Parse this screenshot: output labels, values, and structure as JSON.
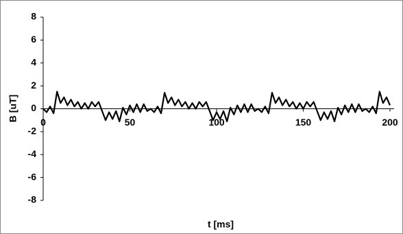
{
  "chart_data": {
    "type": "line",
    "x_label": "t [ms]",
    "y_label": "B [uT]",
    "x": [
      0,
      2,
      4,
      6,
      8,
      10,
      12,
      14,
      16,
      18,
      20,
      22,
      24,
      26,
      28,
      30,
      32,
      34,
      36,
      38,
      40,
      42,
      44,
      46,
      48,
      50,
      52,
      54,
      56,
      58,
      60,
      62,
      64,
      66,
      68,
      70,
      72,
      74,
      76,
      78,
      80,
      82,
      84,
      86,
      88,
      90,
      92,
      94,
      96,
      98,
      100,
      102,
      104,
      106,
      108,
      110,
      112,
      114,
      116,
      118,
      120,
      122,
      124,
      126,
      128,
      130,
      132,
      134,
      136,
      138,
      140,
      142,
      144,
      146,
      148,
      150,
      152,
      154,
      156,
      158,
      160,
      162,
      164,
      166,
      168,
      170,
      172,
      174,
      176,
      178,
      180,
      182,
      184,
      186,
      188,
      190,
      192,
      194,
      196,
      198,
      200
    ],
    "values": [
      0.0,
      -0.3,
      0.2,
      -0.4,
      1.5,
      0.5,
      1.0,
      0.3,
      0.8,
      0.2,
      0.6,
      0.0,
      0.5,
      0.0,
      0.6,
      0.2,
      0.6,
      -0.2,
      -1.0,
      -0.3,
      -0.9,
      -0.2,
      -1.1,
      0.1,
      -0.5,
      0.3,
      -0.3,
      0.4,
      -0.3,
      0.4,
      -0.2,
      0.0,
      -0.3,
      0.2,
      -0.4,
      1.4,
      0.5,
      1.0,
      0.3,
      0.8,
      0.2,
      0.6,
      0.0,
      0.5,
      0.0,
      0.6,
      0.2,
      0.6,
      -0.2,
      -1.0,
      -0.3,
      -0.9,
      -0.2,
      -1.1,
      0.1,
      -0.5,
      0.3,
      -0.3,
      0.4,
      -0.3,
      0.4,
      -0.2,
      0.0,
      -0.3,
      0.2,
      -0.4,
      1.4,
      0.5,
      1.0,
      0.3,
      0.8,
      0.2,
      0.6,
      0.0,
      0.5,
      0.0,
      0.6,
      0.2,
      0.6,
      -0.2,
      -1.0,
      -0.3,
      -0.9,
      -0.2,
      -1.1,
      0.1,
      -0.5,
      0.3,
      -0.3,
      0.4,
      -0.3,
      0.4,
      -0.2,
      0.0,
      -0.3,
      0.2,
      -0.4,
      1.5,
      0.5,
      1.0,
      0.3
    ],
    "color": "#000000",
    "xlim": [
      0,
      200
    ],
    "ylim": [
      -8,
      8
    ],
    "xticks": [
      0,
      50,
      100,
      150,
      200
    ],
    "yticks": [
      -8,
      -6,
      -4,
      -2,
      0,
      2,
      4,
      6,
      8
    ]
  }
}
